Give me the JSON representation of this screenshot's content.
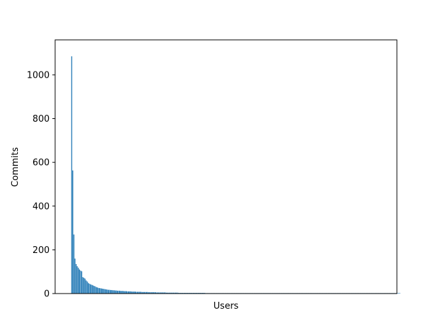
{
  "chart_data": {
    "type": "bar",
    "title": "",
    "xlabel": "Users",
    "ylabel": "Commits",
    "ylim": [
      0,
      1160
    ],
    "y_ticks": [
      0,
      200,
      400,
      600,
      800,
      1000
    ],
    "x_ticks": [],
    "grid": false,
    "legend": "none",
    "bar_color": "#1f77b4",
    "x_count": 290,
    "values": [
      1085,
      563,
      270,
      160,
      135,
      125,
      118,
      110,
      105,
      102,
      75,
      72,
      68,
      60,
      55,
      48,
      45,
      42,
      40,
      38,
      35,
      33,
      30,
      28,
      26,
      25,
      24,
      23,
      22,
      21,
      20,
      19,
      18,
      17,
      17,
      16,
      16,
      15,
      15,
      14,
      14,
      13,
      13,
      13,
      12,
      12,
      12,
      11,
      11,
      11,
      10,
      10,
      10,
      10,
      9,
      9,
      9,
      9,
      8,
      8,
      8,
      8,
      8,
      7,
      7,
      7,
      7,
      7,
      7,
      6,
      6,
      6,
      6,
      6,
      6,
      6,
      5,
      5,
      5,
      5,
      5,
      5,
      5,
      5,
      5,
      4,
      4,
      4,
      4,
      4,
      4,
      4,
      4,
      4,
      4,
      4,
      3,
      3,
      3,
      3,
      3,
      3,
      3,
      3,
      3,
      3,
      3,
      3,
      3,
      3,
      3,
      3,
      3,
      3,
      3,
      3,
      3,
      3,
      3,
      3,
      2,
      2,
      2,
      2,
      2,
      2,
      2,
      2,
      2,
      2,
      2,
      2,
      2,
      2,
      2,
      2,
      2,
      2,
      2,
      2,
      2,
      2,
      2,
      2,
      2,
      2,
      2,
      2,
      2,
      2,
      2,
      2,
      2,
      2,
      2,
      2,
      2,
      2,
      2,
      2,
      2,
      2,
      2,
      2,
      2,
      2,
      2,
      2,
      2,
      2,
      2,
      2,
      2,
      2,
      2,
      2,
      2,
      2,
      2,
      2,
      2,
      2,
      2,
      2,
      2,
      2,
      2,
      2,
      2,
      2,
      2,
      2,
      2,
      2,
      2,
      2,
      2,
      2,
      2,
      2,
      2,
      2,
      2,
      2,
      2,
      2,
      2,
      2,
      2,
      2,
      2,
      2,
      2,
      2,
      2,
      2,
      2,
      2,
      2,
      2,
      2,
      2,
      2,
      2,
      2,
      2,
      2,
      2,
      2,
      2,
      2,
      2,
      2,
      2,
      2,
      2,
      2,
      2,
      2,
      2,
      2,
      2,
      2,
      2,
      2,
      2,
      2,
      2,
      2,
      2,
      2,
      2,
      2,
      2,
      2,
      2,
      2,
      2,
      2,
      2,
      2,
      2,
      2,
      2,
      2,
      2,
      2,
      2,
      2,
      2,
      2,
      2,
      2,
      2,
      2,
      2,
      2,
      2,
      2,
      2,
      2,
      2,
      2,
      2,
      2,
      2,
      2,
      2,
      2,
      2,
      2,
      2,
      2,
      2,
      2
    ]
  }
}
